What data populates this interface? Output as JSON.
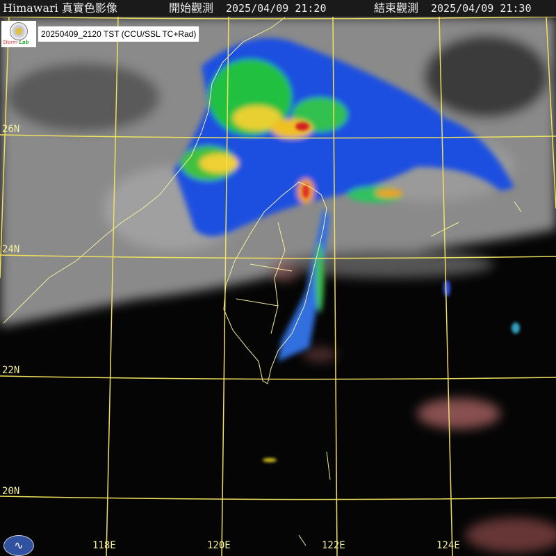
{
  "header": {
    "product": "Himawari 真實色影像",
    "start_label": "開始觀測",
    "start_time": "2025/04/09 21:20",
    "end_label": "結束觀測",
    "end_time": "2025/04/09 21:30"
  },
  "stamp": {
    "text": "20250409_2120 TST (CCU/SSL TC+Rad)",
    "logo_text": "Severe Storms Lab"
  },
  "latitude_labels": [
    "26N",
    "24N",
    "22N",
    "20N"
  ],
  "longitude_labels": [
    "118E",
    "120E",
    "122E",
    "124E"
  ],
  "colors": {
    "grid": "#f0e060",
    "coast": "#f4f0a0",
    "header_bg": "#1a1a1a",
    "agency_logo": "#3050a0"
  },
  "icons": {
    "agency_logo": "cwa-logo-icon",
    "lab_logo": "ssl-logo-icon"
  }
}
